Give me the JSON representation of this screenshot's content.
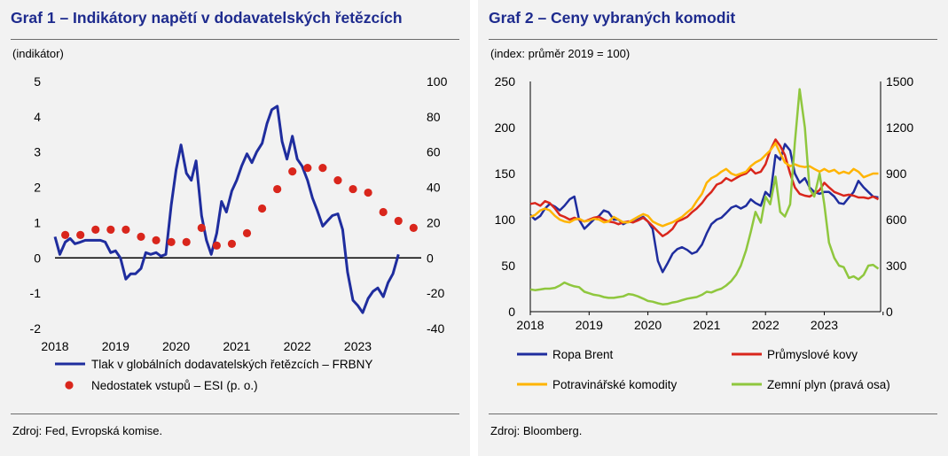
{
  "chart_data": [
    {
      "type": "line",
      "title": "Graf 1 – Indikátory napětí v dodavatelských řetězcích",
      "unit_label": "(indikátor)",
      "source": "Zdroj: Fed, Evropská komise.",
      "x_ticks": [
        "2018",
        "2019",
        "2020",
        "2021",
        "2022",
        "2023"
      ],
      "y_left": {
        "lim": [
          -2,
          5
        ],
        "ticks": [
          "5",
          "4",
          "3",
          "2",
          "1",
          "0",
          "-1",
          "-2"
        ]
      },
      "y_right": {
        "lim": [
          -40,
          100
        ],
        "ticks": [
          "100",
          "80",
          "60",
          "40",
          "20",
          "0",
          "-20",
          "-40"
        ]
      },
      "legend_position": "bottom",
      "series": [
        {
          "name": "Tlak v globálních dodavatelských řetězcích – FRBNY",
          "kind": "line",
          "axis": "left",
          "color": "#1f2d9e",
          "x": [
            2018.0,
            2018.08,
            2018.17,
            2018.25,
            2018.33,
            2018.42,
            2018.5,
            2018.58,
            2018.67,
            2018.75,
            2018.83,
            2018.92,
            2019.0,
            2019.08,
            2019.17,
            2019.25,
            2019.33,
            2019.42,
            2019.5,
            2019.58,
            2019.67,
            2019.75,
            2019.83,
            2019.92,
            2020.0,
            2020.08,
            2020.17,
            2020.25,
            2020.33,
            2020.42,
            2020.5,
            2020.58,
            2020.67,
            2020.75,
            2020.83,
            2020.92,
            2021.0,
            2021.08,
            2021.17,
            2021.25,
            2021.33,
            2021.42,
            2021.5,
            2021.58,
            2021.67,
            2021.75,
            2021.83,
            2021.92,
            2022.0,
            2022.08,
            2022.17,
            2022.25,
            2022.33,
            2022.42,
            2022.5,
            2022.58,
            2022.67,
            2022.75,
            2022.83,
            2022.92,
            2023.0,
            2023.08,
            2023.17,
            2023.25,
            2023.33,
            2023.42,
            2023.5,
            2023.58,
            2023.67,
            2023.75,
            2023.83,
            2023.92
          ],
          "values": [
            0.6,
            0.1,
            0.45,
            0.55,
            0.4,
            0.45,
            0.5,
            0.5,
            0.5,
            0.5,
            0.45,
            0.15,
            0.2,
            0.0,
            -0.6,
            -0.45,
            -0.45,
            -0.3,
            0.15,
            0.1,
            0.15,
            0.05,
            0.1,
            1.5,
            2.5,
            3.2,
            2.4,
            2.2,
            2.75,
            1.2,
            0.5,
            0.1,
            0.7,
            1.6,
            1.3,
            1.9,
            2.2,
            2.6,
            2.95,
            2.7,
            3.0,
            3.25,
            3.8,
            4.2,
            4.3,
            3.3,
            2.8,
            3.45,
            2.8,
            2.6,
            2.2,
            1.7,
            1.35,
            0.9,
            1.05,
            1.2,
            1.25,
            0.8,
            -0.4,
            -1.2,
            -1.35,
            -1.55,
            -1.15,
            -0.95,
            -0.85,
            -1.1,
            -0.7,
            -0.45,
            0.1,
            null,
            null,
            null
          ]
        },
        {
          "name": "Nedostatek vstupů – ESI (p. o.)",
          "kind": "dots",
          "axis": "right",
          "color": "#d9261c",
          "x": [
            2018.17,
            2018.42,
            2018.67,
            2018.92,
            2019.17,
            2019.42,
            2019.67,
            2019.92,
            2020.17,
            2020.42,
            2020.67,
            2020.92,
            2021.17,
            2021.42,
            2021.67,
            2021.92,
            2022.17,
            2022.42,
            2022.67,
            2022.92,
            2023.17,
            2023.42,
            2023.67,
            2023.92
          ],
          "values": [
            13,
            13,
            16,
            16,
            16,
            12,
            10,
            9,
            9,
            17,
            7,
            8,
            14,
            28,
            39,
            49,
            51,
            51,
            44,
            39,
            37,
            26,
            21,
            17
          ]
        }
      ]
    },
    {
      "type": "line",
      "title": "Graf 2 – Ceny vybraných komodit",
      "unit_label": "(index: průměr 2019 = 100)",
      "source": "Zdroj: Bloomberg.",
      "x_ticks": [
        "2018",
        "2019",
        "2020",
        "2021",
        "2022",
        "2023"
      ],
      "y_left": {
        "lim": [
          0,
          250
        ],
        "ticks": [
          "250",
          "200",
          "150",
          "100",
          "50",
          "0"
        ]
      },
      "y_right": {
        "lim": [
          0,
          1500
        ],
        "ticks": [
          "1500",
          "1200",
          "900",
          "600",
          "300",
          "0"
        ]
      },
      "legend_position": "bottom",
      "series": [
        {
          "name": "Ropa Brent",
          "axis": "left",
          "color": "#1f2d9e",
          "x": [
            2018.0,
            2018.08,
            2018.17,
            2018.25,
            2018.33,
            2018.42,
            2018.5,
            2018.58,
            2018.67,
            2018.75,
            2018.83,
            2018.92,
            2019.0,
            2019.08,
            2019.17,
            2019.25,
            2019.33,
            2019.42,
            2019.5,
            2019.58,
            2019.67,
            2019.75,
            2019.83,
            2019.92,
            2020.0,
            2020.08,
            2020.17,
            2020.25,
            2020.33,
            2020.42,
            2020.5,
            2020.58,
            2020.67,
            2020.75,
            2020.83,
            2020.92,
            2021.0,
            2021.08,
            2021.17,
            2021.25,
            2021.33,
            2021.42,
            2021.5,
            2021.58,
            2021.67,
            2021.75,
            2021.83,
            2021.92,
            2022.0,
            2022.08,
            2022.17,
            2022.25,
            2022.33,
            2022.42,
            2022.5,
            2022.58,
            2022.67,
            2022.75,
            2022.83,
            2022.92,
            2023.0,
            2023.08,
            2023.17,
            2023.25,
            2023.33,
            2023.42,
            2023.5,
            2023.58,
            2023.67,
            2023.75,
            2023.83,
            2023.92
          ],
          "values": [
            105,
            100,
            104,
            112,
            117,
            114,
            110,
            115,
            122,
            125,
            100,
            90,
            95,
            100,
            104,
            110,
            108,
            100,
            100,
            95,
            98,
            97,
            100,
            103,
            98,
            90,
            55,
            43,
            52,
            63,
            68,
            70,
            67,
            63,
            65,
            73,
            85,
            95,
            100,
            102,
            107,
            113,
            115,
            112,
            115,
            122,
            118,
            115,
            130,
            125,
            170,
            165,
            182,
            175,
            150,
            140,
            145,
            135,
            130,
            128,
            130,
            130,
            125,
            118,
            117,
            124,
            130,
            142,
            135,
            130,
            125,
            124
          ]
        },
        {
          "name": "Průmyslové kovy",
          "axis": "left",
          "color": "#d9261c",
          "x": [
            2018.0,
            2018.08,
            2018.17,
            2018.25,
            2018.33,
            2018.42,
            2018.5,
            2018.58,
            2018.67,
            2018.75,
            2018.83,
            2018.92,
            2019.0,
            2019.08,
            2019.17,
            2019.25,
            2019.33,
            2019.42,
            2019.5,
            2019.58,
            2019.67,
            2019.75,
            2019.83,
            2019.92,
            2020.0,
            2020.08,
            2020.17,
            2020.25,
            2020.33,
            2020.42,
            2020.5,
            2020.58,
            2020.67,
            2020.75,
            2020.83,
            2020.92,
            2021.0,
            2021.08,
            2021.17,
            2021.25,
            2021.33,
            2021.42,
            2021.5,
            2021.58,
            2021.67,
            2021.75,
            2021.83,
            2021.92,
            2022.0,
            2022.08,
            2022.17,
            2022.25,
            2022.33,
            2022.42,
            2022.5,
            2022.58,
            2022.67,
            2022.75,
            2022.83,
            2022.92,
            2023.0,
            2023.08,
            2023.17,
            2023.25,
            2023.33,
            2023.42,
            2023.5,
            2023.58,
            2023.67,
            2023.75,
            2023.83,
            2023.92
          ],
          "values": [
            117,
            118,
            115,
            120,
            118,
            112,
            105,
            103,
            100,
            102,
            100,
            98,
            100,
            102,
            103,
            100,
            98,
            97,
            95,
            97,
            98,
            97,
            99,
            102,
            98,
            93,
            87,
            82,
            85,
            90,
            98,
            100,
            103,
            108,
            112,
            118,
            125,
            130,
            138,
            140,
            145,
            142,
            145,
            148,
            150,
            155,
            150,
            152,
            160,
            175,
            187,
            180,
            170,
            150,
            135,
            128,
            126,
            125,
            128,
            132,
            140,
            135,
            130,
            128,
            126,
            127,
            126,
            124,
            124,
            123,
            125,
            122
          ]
        },
        {
          "name": "Potravinářské komodity",
          "axis": "left",
          "color": "#ffb400",
          "x": [
            2018.0,
            2018.08,
            2018.17,
            2018.25,
            2018.33,
            2018.42,
            2018.5,
            2018.58,
            2018.67,
            2018.75,
            2018.83,
            2018.92,
            2019.0,
            2019.08,
            2019.17,
            2019.25,
            2019.33,
            2019.42,
            2019.5,
            2019.58,
            2019.67,
            2019.75,
            2019.83,
            2019.92,
            2020.0,
            2020.08,
            2020.17,
            2020.25,
            2020.33,
            2020.42,
            2020.5,
            2020.58,
            2020.67,
            2020.75,
            2020.83,
            2020.92,
            2021.0,
            2021.08,
            2021.17,
            2021.25,
            2021.33,
            2021.42,
            2021.5,
            2021.58,
            2021.67,
            2021.75,
            2021.83,
            2021.92,
            2022.0,
            2022.08,
            2022.17,
            2022.25,
            2022.33,
            2022.42,
            2022.5,
            2022.58,
            2022.67,
            2022.75,
            2022.83,
            2022.92,
            2023.0,
            2023.08,
            2023.17,
            2023.25,
            2023.33,
            2023.42,
            2023.5,
            2023.58,
            2023.67,
            2023.75,
            2023.83,
            2023.92
          ],
          "values": [
            103,
            105,
            110,
            112,
            110,
            104,
            100,
            98,
            97,
            100,
            101,
            98,
            99,
            101,
            100,
            97,
            98,
            103,
            100,
            97,
            97,
            100,
            103,
            106,
            104,
            98,
            95,
            93,
            95,
            97,
            100,
            103,
            108,
            112,
            120,
            128,
            140,
            145,
            148,
            152,
            155,
            150,
            148,
            150,
            152,
            158,
            162,
            165,
            170,
            175,
            183,
            172,
            162,
            158,
            160,
            158,
            157,
            158,
            155,
            152,
            155,
            152,
            154,
            150,
            152,
            150,
            155,
            152,
            146,
            148,
            150,
            150
          ]
        },
        {
          "name": "Zemní plyn (pravá osa)",
          "axis": "right",
          "color": "#8fc73e",
          "x": [
            2018.0,
            2018.08,
            2018.17,
            2018.25,
            2018.33,
            2018.42,
            2018.5,
            2018.58,
            2018.67,
            2018.75,
            2018.83,
            2018.92,
            2019.0,
            2019.08,
            2019.17,
            2019.25,
            2019.33,
            2019.42,
            2019.5,
            2019.58,
            2019.67,
            2019.75,
            2019.83,
            2019.92,
            2020.0,
            2020.08,
            2020.17,
            2020.25,
            2020.33,
            2020.42,
            2020.5,
            2020.58,
            2020.67,
            2020.75,
            2020.83,
            2020.92,
            2021.0,
            2021.08,
            2021.17,
            2021.25,
            2021.33,
            2021.42,
            2021.5,
            2021.58,
            2021.67,
            2021.75,
            2021.83,
            2021.92,
            2022.0,
            2022.08,
            2022.17,
            2022.25,
            2022.33,
            2022.42,
            2022.5,
            2022.58,
            2022.67,
            2022.75,
            2022.83,
            2022.92,
            2023.0,
            2023.08,
            2023.17,
            2023.25,
            2023.33,
            2023.42,
            2023.5,
            2023.58,
            2023.67,
            2023.75,
            2023.83,
            2023.92
          ],
          "values": [
            145,
            140,
            145,
            150,
            150,
            155,
            170,
            190,
            175,
            165,
            160,
            130,
            120,
            110,
            105,
            95,
            90,
            90,
            95,
            100,
            115,
            110,
            100,
            85,
            70,
            65,
            55,
            48,
            50,
            60,
            65,
            75,
            85,
            90,
            95,
            110,
            130,
            125,
            140,
            150,
            170,
            200,
            240,
            300,
            400,
            520,
            650,
            580,
            750,
            700,
            880,
            650,
            620,
            700,
            1100,
            1450,
            1200,
            800,
            750,
            900,
            700,
            450,
            350,
            300,
            290,
            220,
            230,
            210,
            240,
            300,
            305,
            280
          ]
        }
      ]
    }
  ]
}
